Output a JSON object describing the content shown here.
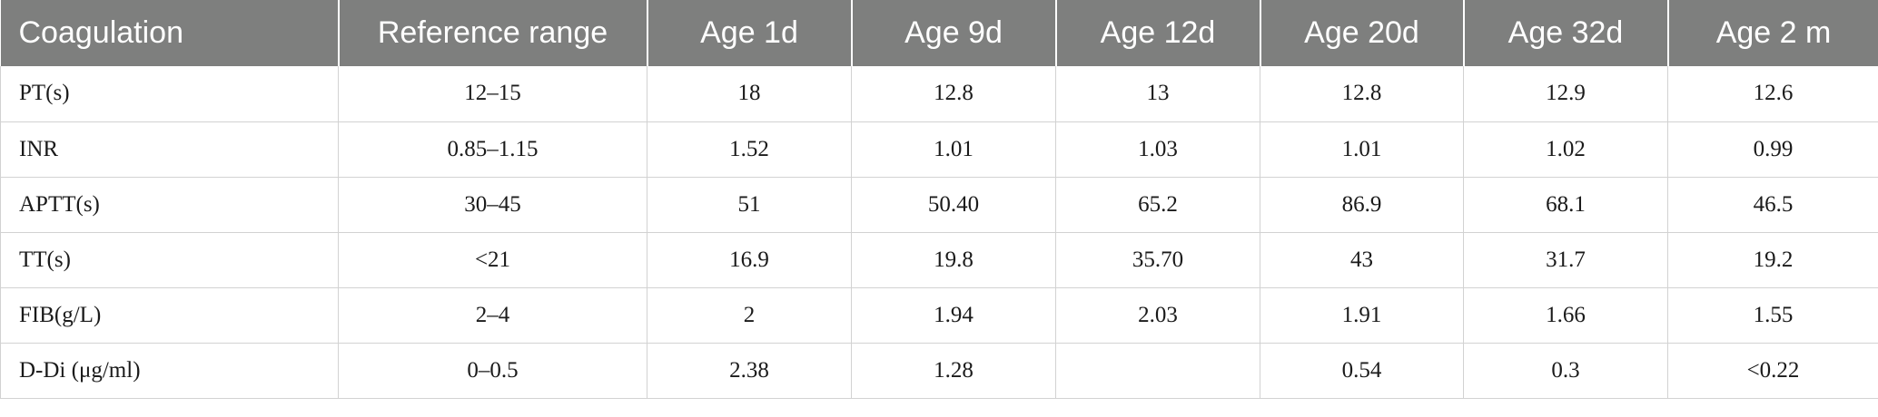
{
  "table": {
    "headers": [
      "Coagulation",
      "Reference range",
      "Age 1d",
      "Age 9d",
      "Age 12d",
      "Age 20d",
      "Age 32d",
      "Age 2 m"
    ],
    "rows": [
      [
        "PT(s)",
        "12–15",
        "18",
        "12.8",
        "13",
        "12.8",
        "12.9",
        "12.6"
      ],
      [
        "INR",
        "0.85–1.15",
        "1.52",
        "1.01",
        "1.03",
        "1.01",
        "1.02",
        "0.99"
      ],
      [
        "APTT(s)",
        "30–45",
        "51",
        "50.40",
        "65.2",
        "86.9",
        "68.1",
        "46.5"
      ],
      [
        "TT(s)",
        "<21",
        "16.9",
        "19.8",
        "35.70",
        "43",
        "31.7",
        "19.2"
      ],
      [
        "FIB(g/L)",
        "2–4",
        "2",
        "1.94",
        "2.03",
        "1.91",
        "1.66",
        "1.55"
      ],
      [
        "D-Di (μg/ml)",
        "0–0.5",
        "2.38",
        "1.28",
        "",
        "0.54",
        "0.3",
        "<0.22"
      ]
    ]
  },
  "colors": {
    "header_background": "#7e7f7e",
    "header_text": "#ffffff",
    "grid_line": "#d2d2d2",
    "body_text": "#1a1a1a"
  }
}
